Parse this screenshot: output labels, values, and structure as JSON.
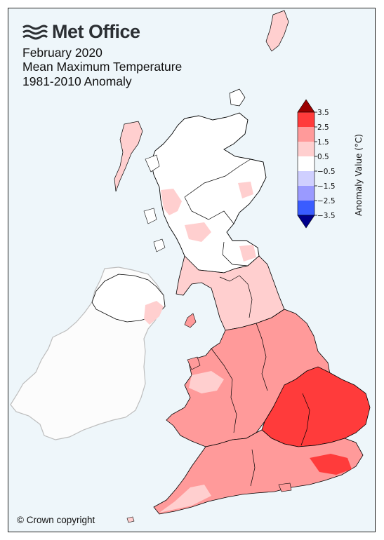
{
  "header": {
    "brand": "Met Office",
    "title_lines": [
      "February 2020",
      "Mean Maximum Temperature",
      "1981-2010 Anomaly"
    ]
  },
  "footer": {
    "copyright": "© Crown copyright"
  },
  "legend": {
    "label": "Anomaly Value (°C)",
    "ticks": [
      "3.5",
      "2.5",
      "1.5",
      "0.5",
      "−0.5",
      "−1.5",
      "−2.5",
      "−3.5"
    ],
    "bins": [
      {
        "range": "above 3.5",
        "color": "#9b0000"
      },
      {
        "range": "2.5 to 3.5",
        "color": "#ff3b3b"
      },
      {
        "range": "1.5 to 2.5",
        "color": "#ff9a9a"
      },
      {
        "range": "0.5 to 1.5",
        "color": "#ffcfcf"
      },
      {
        "range": "-0.5 to 0.5",
        "color": "#ffffff"
      },
      {
        "range": "-1.5 to -0.5",
        "color": "#cfcfff"
      },
      {
        "range": "-2.5 to -1.5",
        "color": "#9a9aff"
      },
      {
        "range": "-3.5 to -2.5",
        "color": "#3a5cff"
      },
      {
        "range": "below -3.5",
        "color": "#00008b"
      }
    ]
  },
  "map": {
    "regions": [
      {
        "name": "Shetland",
        "anomaly_band": "0.5 to 1.5"
      },
      {
        "name": "Orkney",
        "anomaly_band": "-0.5 to 0.5"
      },
      {
        "name": "Western Isles",
        "anomaly_band": "0.5 to 1.5"
      },
      {
        "name": "Northern Scotland",
        "anomaly_band": "-0.5 to 0.5"
      },
      {
        "name": "Eastern Scotland",
        "anomaly_band": "-0.5 to 0.5"
      },
      {
        "name": "Western Scotland",
        "anomaly_band": "-0.5 to 0.5"
      },
      {
        "name": "Northern Ireland",
        "anomaly_band": "-0.5 to 0.5"
      },
      {
        "name": "North West England",
        "anomaly_band": "0.5 to 1.5"
      },
      {
        "name": "North East England",
        "anomaly_band": "0.5 to 1.5"
      },
      {
        "name": "Wales",
        "anomaly_band": "1.5 to 2.5"
      },
      {
        "name": "Midlands",
        "anomaly_band": "1.5 to 2.5"
      },
      {
        "name": "East Anglia",
        "anomaly_band": "2.5 to 3.5"
      },
      {
        "name": "South East England",
        "anomaly_band": "2.5 to 3.5"
      },
      {
        "name": "South West England",
        "anomaly_band": "1.5 to 2.5"
      }
    ],
    "colors": {
      "sea": "#eef6fa",
      "ireland": "#fcfcfc",
      "ireland_border": "#bdbdbd",
      "coast": "#000000"
    }
  }
}
